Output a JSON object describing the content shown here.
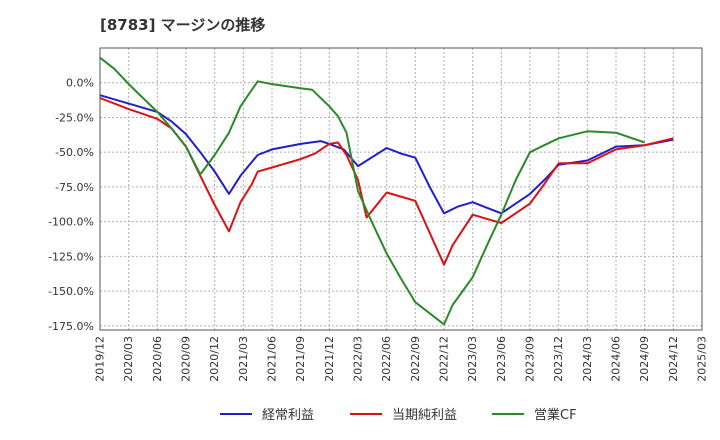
{
  "chart_data": {
    "type": "line",
    "title": "[8783]  マージンの推移",
    "xlabel": "",
    "ylabel": "",
    "x_tick_labels": [
      "2019/12",
      "2020/03",
      "2020/06",
      "2020/09",
      "2020/12",
      "2021/03",
      "2021/06",
      "2021/09",
      "2021/12",
      "2022/03",
      "2022/06",
      "2022/09",
      "2022/12",
      "2023/03",
      "2023/06",
      "2023/09",
      "2023/12",
      "2024/03",
      "2024/06",
      "2024/09",
      "2024/12",
      "2025/03"
    ],
    "y_tick_labels": [
      "0.0%",
      "-25.0%",
      "-50.0%",
      "-75.0%",
      "-100.0%",
      "-125.0%",
      "-150.0%",
      "-175.0%"
    ],
    "y_ticks": [
      0,
      -25,
      -50,
      -75,
      -100,
      -125,
      -150,
      -175
    ],
    "ylim": [
      -178,
      25
    ],
    "xlim_quarters": [
      0,
      21
    ],
    "grid": true,
    "legend_position": "bottom",
    "series": [
      {
        "name": "経常利益",
        "color": "#1f1fcc",
        "points": [
          [
            0,
            -9
          ],
          [
            1,
            -15
          ],
          [
            2,
            -21
          ],
          [
            2.5,
            -28
          ],
          [
            3,
            -37
          ],
          [
            3.5,
            -50
          ],
          [
            4,
            -64
          ],
          [
            4.5,
            -80
          ],
          [
            4.9,
            -67
          ],
          [
            5.3,
            -57
          ],
          [
            5.5,
            -52
          ],
          [
            6,
            -48
          ],
          [
            7,
            -44
          ],
          [
            7.7,
            -42
          ],
          [
            8,
            -44
          ],
          [
            8.5,
            -48
          ],
          [
            9,
            -60
          ],
          [
            10,
            -47
          ],
          [
            10.5,
            -51
          ],
          [
            11,
            -54
          ],
          [
            11.5,
            -75
          ],
          [
            12,
            -94
          ],
          [
            12.5,
            -89
          ],
          [
            13,
            -86
          ],
          [
            13.5,
            -90
          ],
          [
            14,
            -94
          ],
          [
            14.5,
            -87
          ],
          [
            15,
            -80
          ],
          [
            15.5,
            -70
          ],
          [
            16,
            -59
          ],
          [
            17,
            -56
          ],
          [
            18,
            -46
          ],
          [
            19,
            -45
          ],
          [
            20,
            -41
          ]
        ]
      },
      {
        "name": "当期純利益",
        "color": "#dd1111",
        "points": [
          [
            0,
            -11
          ],
          [
            1,
            -19
          ],
          [
            2,
            -26
          ],
          [
            2.5,
            -33
          ],
          [
            3,
            -46
          ],
          [
            3.5,
            -67
          ],
          [
            4,
            -88
          ],
          [
            4.5,
            -107
          ],
          [
            4.9,
            -86
          ],
          [
            5.3,
            -73
          ],
          [
            5.5,
            -64
          ],
          [
            6,
            -61
          ],
          [
            7,
            -55
          ],
          [
            7.5,
            -51
          ],
          [
            8,
            -44
          ],
          [
            8.3,
            -43
          ],
          [
            8.6,
            -52
          ],
          [
            9,
            -70
          ],
          [
            9.3,
            -97
          ],
          [
            10,
            -79
          ],
          [
            11,
            -85
          ],
          [
            11.5,
            -108
          ],
          [
            12,
            -131
          ],
          [
            12.3,
            -117
          ],
          [
            13,
            -95
          ],
          [
            13.5,
            -98
          ],
          [
            14,
            -101
          ],
          [
            14.5,
            -94
          ],
          [
            15,
            -87
          ],
          [
            15.5,
            -73
          ],
          [
            16,
            -58
          ],
          [
            17,
            -58
          ],
          [
            18,
            -48
          ],
          [
            19,
            -45
          ],
          [
            20,
            -40
          ]
        ]
      },
      {
        "name": "営業CF",
        "color": "#2a8a2a",
        "points": [
          [
            0,
            18
          ],
          [
            0.5,
            10
          ],
          [
            1,
            -1
          ],
          [
            1.5,
            -11
          ],
          [
            2,
            -21
          ],
          [
            2.5,
            -33
          ],
          [
            3,
            -46
          ],
          [
            3.5,
            -66
          ],
          [
            4,
            -52
          ],
          [
            4.5,
            -36
          ],
          [
            4.9,
            -17
          ],
          [
            5.3,
            -5
          ],
          [
            5.5,
            1
          ],
          [
            6,
            -1
          ],
          [
            7,
            -4
          ],
          [
            7.4,
            -5
          ],
          [
            8,
            -17
          ],
          [
            8.3,
            -24
          ],
          [
            8.6,
            -36
          ],
          [
            9,
            -78
          ],
          [
            9.5,
            -101
          ],
          [
            10,
            -123
          ],
          [
            10.5,
            -141
          ],
          [
            11,
            -158
          ],
          [
            11.5,
            -166
          ],
          [
            12,
            -174
          ],
          [
            12.3,
            -160
          ],
          [
            13,
            -140
          ],
          [
            13.5,
            -117
          ],
          [
            14,
            -95
          ],
          [
            14.5,
            -70
          ],
          [
            15,
            -50
          ],
          [
            15.5,
            -45
          ],
          [
            16,
            -40
          ],
          [
            17,
            -35
          ],
          [
            18,
            -36
          ],
          [
            19,
            -43
          ]
        ]
      }
    ]
  }
}
